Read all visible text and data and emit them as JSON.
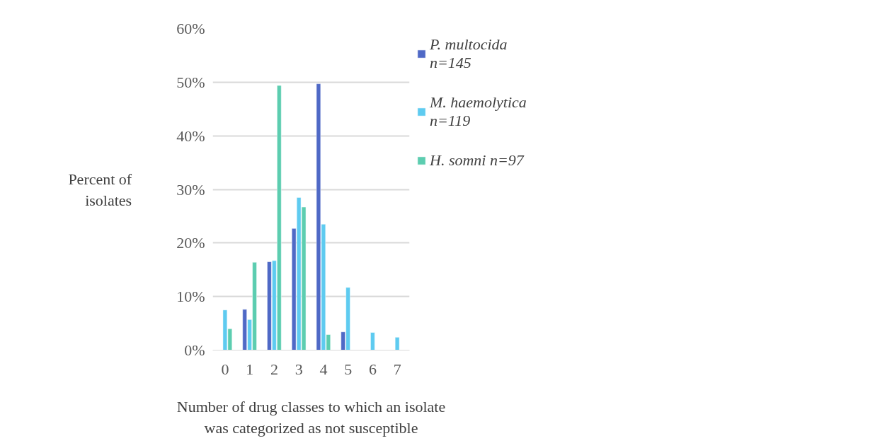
{
  "chart_data": {
    "type": "bar",
    "xlabel": "Number of drug classes to which an isolate was categorized as not susceptible",
    "ylabel": "Percent of isolates",
    "categories": [
      "0",
      "1",
      "2",
      "3",
      "4",
      "5",
      "6",
      "7"
    ],
    "series": [
      {
        "name": "P. multocida n=145",
        "color": "#4f69c6",
        "values": [
          null,
          7.6,
          16.5,
          22.7,
          49.7,
          3.4,
          null,
          null
        ]
      },
      {
        "name": "M. haemolytica n=119",
        "color": "#5ecbf0",
        "values": [
          7.5,
          5.7,
          16.7,
          28.5,
          23.5,
          11.7,
          3.3,
          2.4
        ]
      },
      {
        "name": "H. somni n=97",
        "color": "#5ccdb0",
        "values": [
          4.0,
          16.4,
          49.4,
          26.7,
          2.9,
          null,
          null,
          null
        ]
      }
    ],
    "ylim": [
      0,
      60
    ],
    "yticks": [
      {
        "value": 0,
        "label": "0%"
      },
      {
        "value": 10,
        "label": "10%"
      },
      {
        "value": 20,
        "label": "20%"
      },
      {
        "value": 30,
        "label": "30%"
      },
      {
        "value": 40,
        "label": "40%"
      },
      {
        "value": 50,
        "label": "50%"
      },
      {
        "value": 60,
        "label": "60%"
      }
    ],
    "grid": "y",
    "legend": "right"
  }
}
